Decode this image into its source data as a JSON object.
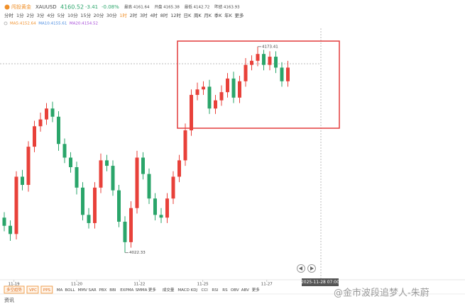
{
  "header": {
    "name": "闯投黄金",
    "symbol": "XAUUSD",
    "price": "4160.52",
    "change": "-3.41",
    "change_pct": "-0.08%",
    "stats": [
      "最高 4161.64",
      "开盘 4165.38",
      "最低 4142.72",
      "昨结 4163.93"
    ]
  },
  "periods": [
    "分时",
    "1分",
    "2分",
    "3分",
    "4分",
    "5分",
    "10分",
    "15分",
    "20分",
    "30分",
    "1时",
    "2时",
    "3时",
    "4时",
    "8时",
    "12时",
    "日K",
    "周K",
    "月K",
    "季K",
    "年K",
    "更多"
  ],
  "active_period": "1时",
  "ma_legend": [
    {
      "text": "MA5:4152.64",
      "color": "#f0902a"
    },
    {
      "text": "MA10:4155.61",
      "color": "#4a8be0"
    },
    {
      "text": "MA20:4154.52",
      "color": "#a64ad8"
    }
  ],
  "indicator_tabs": {
    "boxed": [
      "多空趋势",
      "VPC",
      "PPS"
    ],
    "main": [
      "MA",
      "BOLL",
      "MMV",
      "SAR",
      "PBX",
      "BBI",
      "EXPMA",
      "SMMA",
      "更多"
    ],
    "sub": [
      "成交量",
      "MACD",
      "KDJ",
      "CCI",
      "RSI",
      "RS",
      "OBV",
      "ABV",
      "更多"
    ]
  },
  "footer": {
    "tab": "资讯",
    "watermark": "@金市波段追梦人-朱蔚"
  },
  "chart_data": {
    "type": "candlestick",
    "up_color": "#e8413a",
    "down_color": "#2aa56a",
    "open": [
      4048,
      4042,
      4036,
      4078,
      4072,
      4100,
      4115,
      4120,
      4128,
      4122,
      4102,
      4092,
      4085,
      4070,
      4050,
      4044,
      4070,
      4090,
      4086,
      4068,
      4045,
      4030,
      4055,
      4092,
      4080,
      4062,
      4050,
      4048,
      4062,
      4078,
      4090,
      4112,
      4138,
      4142,
      4144,
      4128,
      4134,
      4140,
      4150,
      4136,
      4148,
      4160,
      4163,
      4168,
      4160,
      4166,
      4158,
      4148
    ],
    "high": [
      4052,
      4046,
      4082,
      4083,
      4104,
      4119,
      4125,
      4132,
      4133,
      4126,
      4106,
      4096,
      4089,
      4074,
      4055,
      4074,
      4095,
      4094,
      4090,
      4072,
      4049,
      4060,
      4097,
      4096,
      4084,
      4066,
      4055,
      4066,
      4082,
      4094,
      4117,
      4142,
      4147,
      4148,
      4149,
      4138,
      4145,
      4154,
      4155,
      4152,
      4165,
      4167,
      4173.41,
      4171,
      4170,
      4170,
      4162,
      4163
    ],
    "low": [
      4038,
      4031,
      4032,
      4068,
      4067,
      4096,
      4111,
      4116,
      4118,
      4097,
      4088,
      4081,
      4065,
      4046,
      4040,
      4040,
      4066,
      4082,
      4064,
      4041,
      4022.33,
      4026,
      4051,
      4076,
      4058,
      4046,
      4044,
      4044,
      4058,
      4074,
      4086,
      4108,
      4134,
      4138,
      4124,
      4124,
      4130,
      4136,
      4132,
      4132,
      4144,
      4156,
      4159,
      4156,
      4156,
      4154,
      4144,
      4144
    ],
    "close": [
      4042,
      4036,
      4078,
      4072,
      4100,
      4115,
      4120,
      4128,
      4122,
      4102,
      4092,
      4085,
      4070,
      4050,
      4044,
      4070,
      4090,
      4086,
      4068,
      4045,
      4030,
      4055,
      4092,
      4080,
      4062,
      4050,
      4048,
      4062,
      4078,
      4090,
      4112,
      4138,
      4142,
      4144,
      4128,
      4134,
      4140,
      4150,
      4136,
      4148,
      4160,
      4163,
      4168,
      4160,
      4166,
      4158,
      4148,
      4158
    ],
    "ylim": [
      4005,
      4192
    ],
    "xticks": [
      {
        "value": 1.6,
        "label": "11-19"
      },
      {
        "value": 12,
        "label": "11-20"
      },
      {
        "value": 22.4,
        "label": "11-22"
      },
      {
        "value": 32.9,
        "label": "11-25"
      },
      {
        "value": 43.5,
        "label": "11-27"
      }
    ],
    "cursor_time": "2025-11-28 07:00"
  }
}
